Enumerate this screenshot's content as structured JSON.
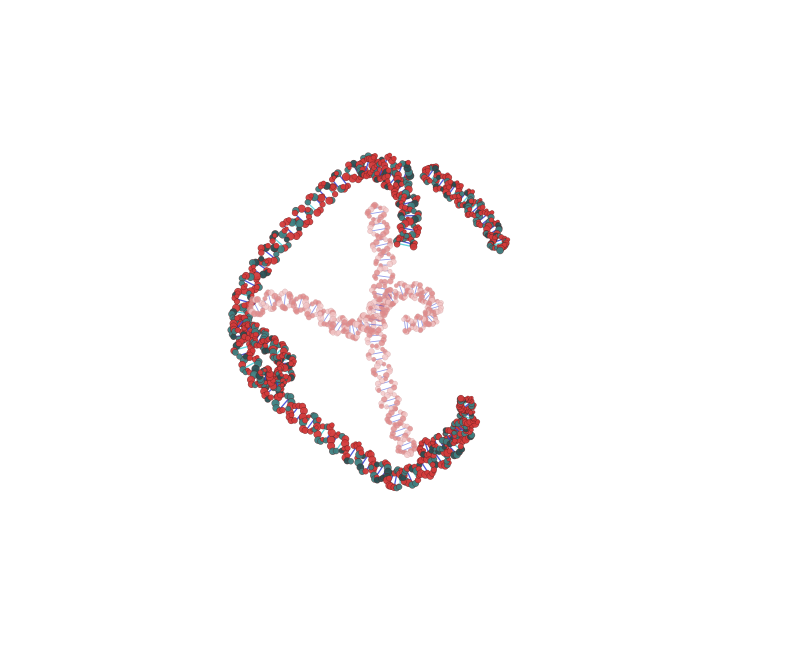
{
  "scene": {
    "background": "#ffffff",
    "subject": "molecular-structure",
    "palette": {
      "oxygen": "#d23a3a",
      "oxygen_light": "#e08a8a",
      "carbon": "#3d7f80",
      "carbon_dark": "#2a4f52",
      "nitrogen": "#3a48d6",
      "cyan": "#4fd1d9",
      "highlight": "#f3c6c6"
    }
  }
}
